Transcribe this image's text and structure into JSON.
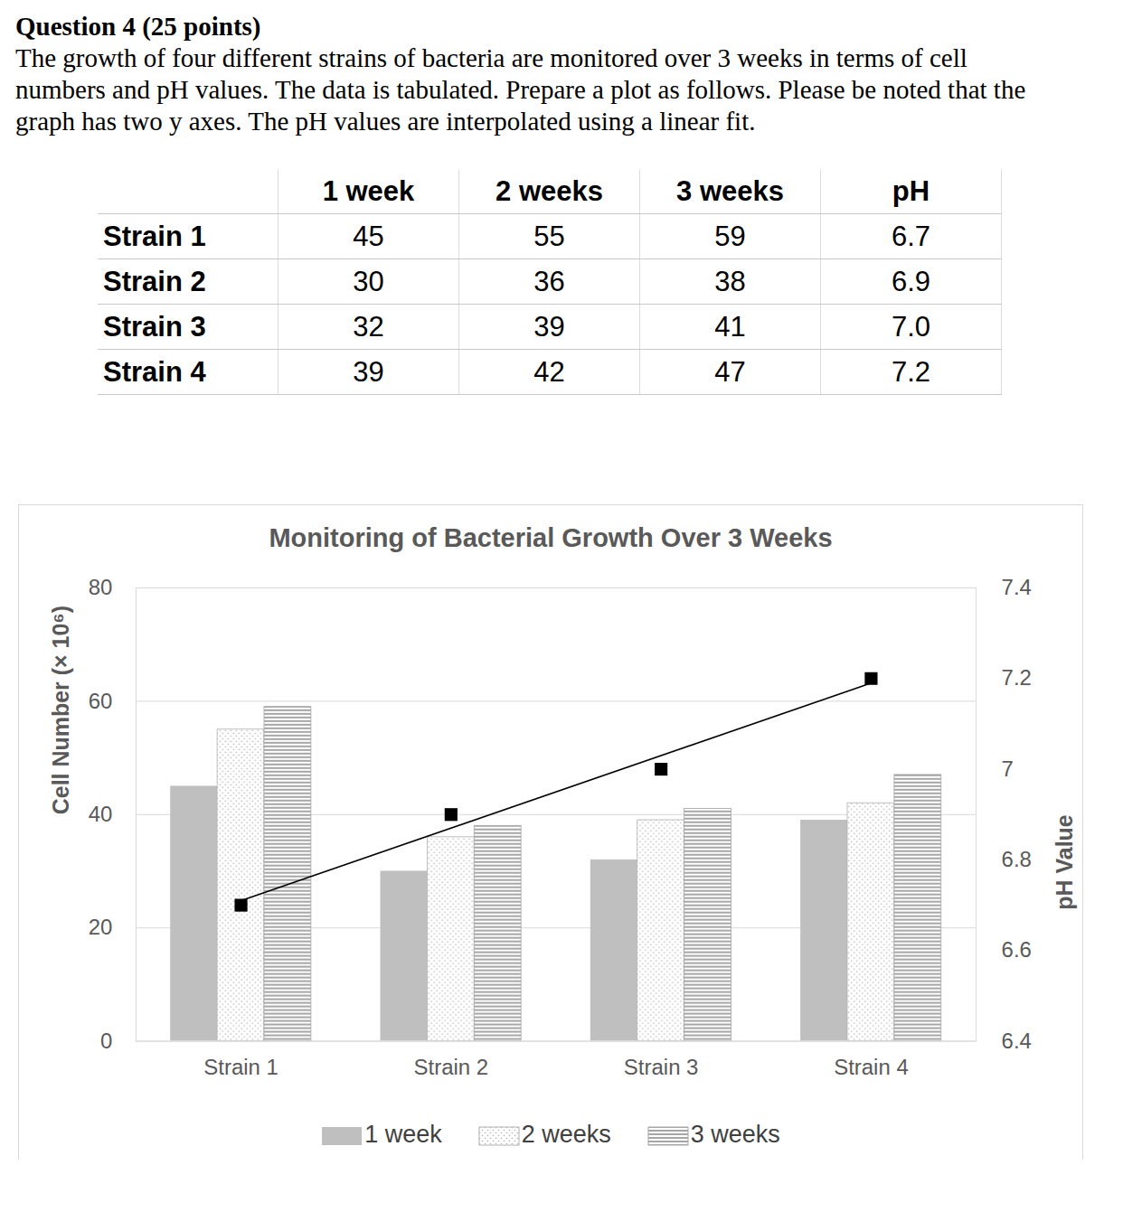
{
  "document": {
    "heading": "Question 4 (25 points)",
    "lines": [
      "The growth of four different strains of bacteria are monitored over 3 weeks in terms of cell",
      "numbers and pH values. The data is tabulated. Prepare a plot as follows. Please be noted that the",
      "graph has two y axes. The pH values are interpolated using a linear fit."
    ],
    "table": {
      "columns": [
        "1 week",
        "2 weeks",
        "3 weeks",
        "pH"
      ],
      "rows": [
        {
          "label": "Strain 1",
          "cells": [
            "45",
            "55",
            "59",
            "6.7"
          ]
        },
        {
          "label": "Strain 2",
          "cells": [
            "30",
            "36",
            "38",
            "6.9"
          ]
        },
        {
          "label": "Strain 3",
          "cells": [
            "32",
            "39",
            "41",
            "7.0"
          ]
        },
        {
          "label": "Strain 4",
          "cells": [
            "39",
            "42",
            "47",
            "7.2"
          ]
        }
      ]
    }
  },
  "chart_data": {
    "type": "bar",
    "title": "Monitoring of Bacterial Growth Over 3 Weeks",
    "ylabel": "Cell Number (× 10⁶)",
    "y2label": "pH Value",
    "categories": [
      "Strain 1",
      "Strain 2",
      "Strain 3",
      "Strain 4"
    ],
    "series": [
      {
        "name": "1 week",
        "color": "#bfbfbf",
        "values": [
          45,
          30,
          32,
          39
        ]
      },
      {
        "name": "2 weeks",
        "color": "#b0b0b0",
        "values": [
          55,
          36,
          39,
          42
        ]
      },
      {
        "name": "3 weeks",
        "color": "#a6a6a6",
        "values": [
          59,
          38,
          41,
          47
        ]
      },
      {
        "name": "pH",
        "type": "scatter",
        "marker": "square",
        "line_style": "solid",
        "color": "#000000",
        "axis": "y2",
        "values": [
          6.7,
          6.9,
          7.0,
          7.2
        ]
      }
    ],
    "ylim": [
      0,
      80
    ],
    "yticks": [
      0,
      20,
      40,
      60,
      80
    ],
    "y2lim": [
      6.4,
      7.4
    ],
    "y2ticks": [
      6.4,
      6.6,
      6.8,
      7,
      7.2,
      7.4
    ],
    "grid": true,
    "legend": "bottom"
  }
}
